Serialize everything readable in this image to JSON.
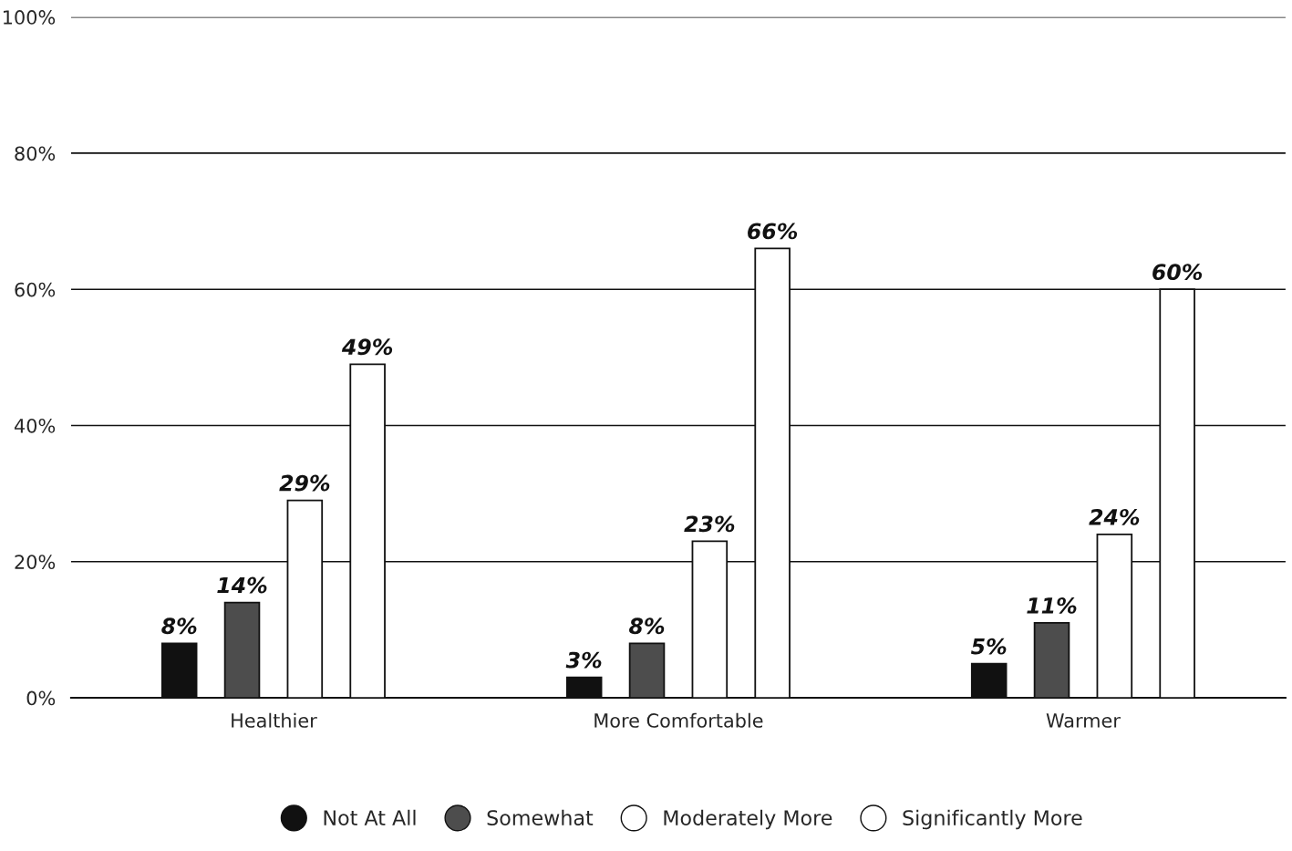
{
  "chart_data": {
    "type": "bar",
    "categories": [
      "Healthier",
      "More Comfortable",
      "Warmer"
    ],
    "series": [
      {
        "name": "Not At All",
        "color": "#111111",
        "values": [
          8,
          3,
          5
        ],
        "value_labels": [
          "8%",
          "3%",
          "5%"
        ]
      },
      {
        "name": "Somewhat",
        "color": "#4d4d4d",
        "values": [
          14,
          8,
          11
        ],
        "value_labels": [
          "14%",
          "8%",
          "11%"
        ]
      },
      {
        "name": "Moderately More",
        "color": "#ffffff",
        "values": [
          29,
          23,
          24
        ],
        "value_labels": [
          "29%",
          "23%",
          "24%"
        ]
      },
      {
        "name": "Significantly More",
        "color": "#ffffff",
        "values": [
          49,
          66,
          60
        ],
        "value_labels": [
          "49%",
          "66%",
          "60%"
        ]
      }
    ],
    "ylim": [
      0,
      100
    ],
    "yticks": [
      {
        "value": 0,
        "label": "0%"
      },
      {
        "value": 20,
        "label": "20%"
      },
      {
        "value": 40,
        "label": "40%"
      },
      {
        "value": 60,
        "label": "60%"
      },
      {
        "value": 80,
        "label": "80%"
      },
      {
        "value": 100,
        "label": "100%"
      }
    ],
    "grid": "y",
    "legend": "bottom"
  }
}
